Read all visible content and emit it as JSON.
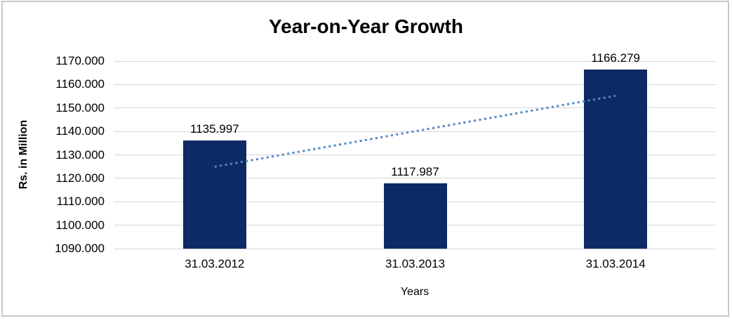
{
  "chart_data": {
    "type": "bar",
    "title": "Year-on-Year Growth",
    "xlabel": "Years",
    "ylabel": "Rs. in Million",
    "categories": [
      "31.03.2012",
      "31.03.2013",
      "31.03.2014"
    ],
    "values": [
      1135.997,
      1117.987,
      1166.279
    ],
    "value_labels": [
      "1135.997",
      "1117.987",
      "1166.279"
    ],
    "ylim": [
      1090,
      1170
    ],
    "ytick_step": 10,
    "ytick_labels": [
      "1090.000",
      "1100.000",
      "1110.000",
      "1120.000",
      "1130.000",
      "1140.000",
      "1150.000",
      "1160.000",
      "1170.000"
    ],
    "grid": true,
    "legend": false,
    "trendline": {
      "type": "linear",
      "style": "dotted",
      "y_start": 1124.95,
      "y_end": 1155.23
    },
    "colors": {
      "bar": "#0d2a64",
      "trendline": "#4f86c6",
      "gridline": "#d5d5d5",
      "text": "#000000",
      "background": "#ffffff",
      "frame_border": "#c8c8c8"
    }
  }
}
